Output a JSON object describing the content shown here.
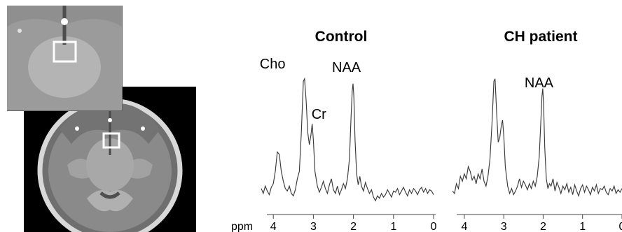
{
  "chart_data": [
    {
      "type": "line",
      "title": "Control",
      "xlabel": "ppm",
      "ylabel": "",
      "x_ticks": [
        4,
        3,
        2,
        1,
        0
      ],
      "x_range": [
        4.3,
        0
      ],
      "x_reversed": true,
      "y_range": [
        -0.05,
        1.05
      ],
      "grid": false,
      "annotations": [
        {
          "text": "Cho",
          "ppm": 3.22
        },
        {
          "text": "Cr",
          "ppm": 3.03
        },
        {
          "text": "NAA",
          "ppm": 2.01
        }
      ],
      "series": [
        {
          "x": [
            4.3,
            4.25,
            4.2,
            4.15,
            4.1,
            4.05,
            4.0,
            3.95,
            3.9,
            3.85,
            3.8,
            3.75,
            3.7,
            3.65,
            3.6,
            3.55,
            3.5,
            3.45,
            3.4,
            3.35,
            3.3,
            3.25,
            3.22,
            3.18,
            3.14,
            3.1,
            3.06,
            3.03,
            3.0,
            2.96,
            2.9,
            2.85,
            2.8,
            2.75,
            2.7,
            2.65,
            2.6,
            2.55,
            2.5,
            2.45,
            2.4,
            2.35,
            2.3,
            2.25,
            2.2,
            2.15,
            2.1,
            2.06,
            2.03,
            2.01,
            1.99,
            1.96,
            1.92,
            1.88,
            1.84,
            1.8,
            1.75,
            1.7,
            1.65,
            1.6,
            1.55,
            1.5,
            1.45,
            1.4,
            1.35,
            1.3,
            1.25,
            1.2,
            1.15,
            1.1,
            1.05,
            1.0,
            0.95,
            0.9,
            0.85,
            0.8,
            0.75,
            0.7,
            0.65,
            0.6,
            0.55,
            0.5,
            0.45,
            0.4,
            0.35,
            0.3,
            0.25,
            0.2,
            0.15,
            0.1,
            0.05,
            0.0
          ],
          "y": [
            0.1,
            0.06,
            0.12,
            0.08,
            0.05,
            0.11,
            0.14,
            0.24,
            0.4,
            0.38,
            0.24,
            0.16,
            0.1,
            0.08,
            0.12,
            0.06,
            0.04,
            0.09,
            0.18,
            0.24,
            0.56,
            0.98,
            1.0,
            0.82,
            0.56,
            0.46,
            0.54,
            0.63,
            0.5,
            0.24,
            0.12,
            0.07,
            0.11,
            0.16,
            0.1,
            0.06,
            0.13,
            0.18,
            0.09,
            0.06,
            0.12,
            0.05,
            0.09,
            0.14,
            0.1,
            0.18,
            0.34,
            0.68,
            0.9,
            0.96,
            0.86,
            0.5,
            0.22,
            0.13,
            0.2,
            0.12,
            0.08,
            0.15,
            0.1,
            0.06,
            0.09,
            0.03,
            0.0,
            0.04,
            0.02,
            0.06,
            0.03,
            0.05,
            0.09,
            0.06,
            0.03,
            0.08,
            0.07,
            0.1,
            0.05,
            0.08,
            0.11,
            0.07,
            0.04,
            0.09,
            0.06,
            0.1,
            0.08,
            0.05,
            0.09,
            0.11,
            0.07,
            0.1,
            0.06,
            0.09,
            0.08,
            0.05
          ]
        }
      ]
    },
    {
      "type": "line",
      "title": "CH patient",
      "xlabel": "",
      "ylabel": "",
      "x_ticks": [
        4,
        3,
        2,
        1,
        0
      ],
      "x_range": [
        4.3,
        0
      ],
      "x_reversed": true,
      "y_range": [
        -0.05,
        1.05
      ],
      "grid": false,
      "annotations": [
        {
          "text": "NAA",
          "ppm": 2.01
        }
      ],
      "series": [
        {
          "x": [
            4.3,
            4.25,
            4.2,
            4.15,
            4.1,
            4.05,
            4.0,
            3.95,
            3.9,
            3.85,
            3.8,
            3.75,
            3.7,
            3.65,
            3.6,
            3.55,
            3.5,
            3.45,
            3.4,
            3.35,
            3.3,
            3.25,
            3.22,
            3.18,
            3.14,
            3.1,
            3.06,
            3.03,
            3.0,
            2.96,
            2.9,
            2.85,
            2.8,
            2.75,
            2.7,
            2.65,
            2.6,
            2.55,
            2.5,
            2.45,
            2.4,
            2.35,
            2.3,
            2.25,
            2.2,
            2.15,
            2.1,
            2.06,
            2.03,
            2.01,
            1.99,
            1.96,
            1.92,
            1.88,
            1.84,
            1.8,
            1.75,
            1.7,
            1.65,
            1.6,
            1.55,
            1.5,
            1.45,
            1.4,
            1.35,
            1.3,
            1.25,
            1.2,
            1.15,
            1.1,
            1.05,
            1.0,
            0.95,
            0.9,
            0.85,
            0.8,
            0.75,
            0.7,
            0.65,
            0.6,
            0.55,
            0.5,
            0.45,
            0.4,
            0.35,
            0.3,
            0.25,
            0.2,
            0.15,
            0.1,
            0.05,
            0.0
          ],
          "y": [
            0.08,
            0.06,
            0.14,
            0.1,
            0.2,
            0.16,
            0.22,
            0.18,
            0.28,
            0.24,
            0.17,
            0.2,
            0.14,
            0.22,
            0.18,
            0.26,
            0.16,
            0.12,
            0.2,
            0.34,
            0.62,
            0.98,
            1.0,
            0.72,
            0.48,
            0.52,
            0.62,
            0.66,
            0.54,
            0.28,
            0.12,
            0.06,
            0.1,
            0.05,
            0.08,
            0.12,
            0.18,
            0.11,
            0.16,
            0.13,
            0.09,
            0.14,
            0.1,
            0.16,
            0.12,
            0.2,
            0.36,
            0.64,
            0.86,
            0.92,
            0.8,
            0.44,
            0.18,
            0.1,
            0.14,
            0.12,
            0.18,
            0.08,
            0.15,
            0.11,
            0.06,
            0.12,
            0.09,
            0.14,
            0.07,
            0.11,
            0.05,
            0.13,
            0.08,
            0.04,
            0.1,
            0.13,
            0.07,
            0.12,
            0.09,
            0.05,
            0.11,
            0.08,
            0.13,
            0.06,
            0.1,
            0.09,
            0.12,
            0.07,
            0.05,
            0.1,
            0.08,
            0.12,
            0.06,
            0.09,
            0.07,
            0.1
          ]
        }
      ]
    }
  ]
}
